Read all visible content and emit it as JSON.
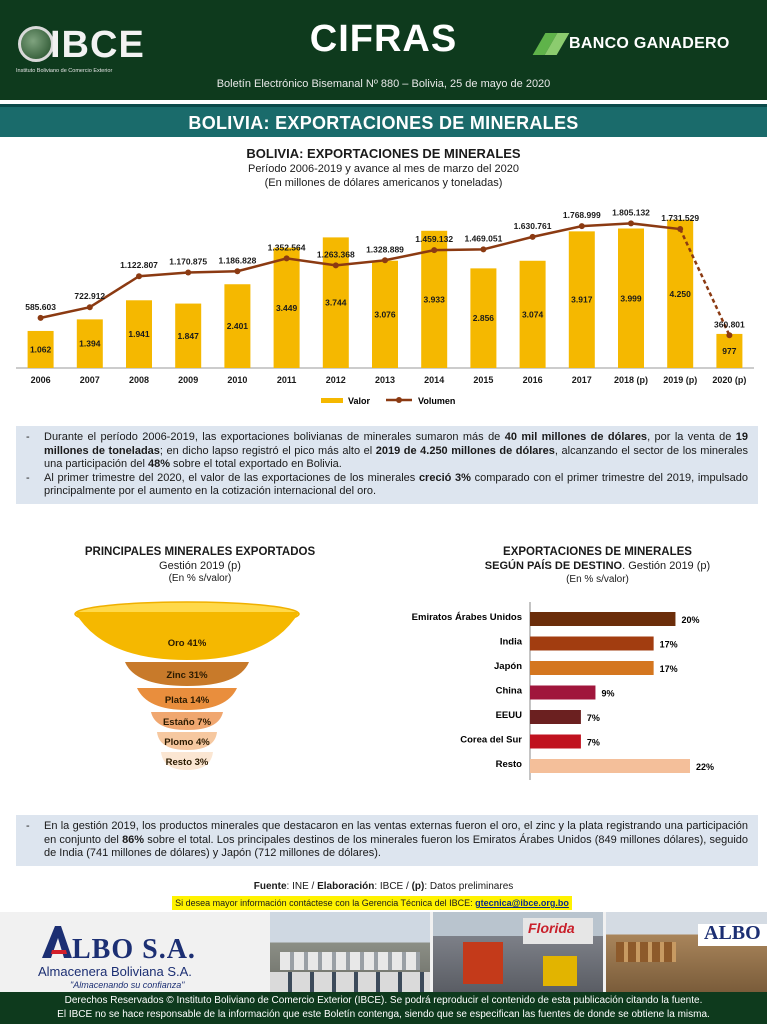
{
  "header": {
    "logo_text": "IBCE",
    "logo_subtext": "Instituto Boliviano de Comercio Exterior",
    "title": "CIFRAS",
    "bank_name": "BANCO GANADERO",
    "bulletin": "Boletín Electrónico Bisemanal Nº 880 – Bolivia, 25 de mayo de 2020"
  },
  "section": {
    "title": "BOLIVIA: EXPORTACIONES DE MINERALES"
  },
  "chart_data": [
    {
      "type": "bar",
      "title": "BOLIVIA: EXPORTACIONES DE MINERALES",
      "subtitle": "Período 2006-2019 y avance al mes de marzo del 2020",
      "subtitle2": "(En millones de dólares americanos y toneladas)",
      "categories": [
        "2006",
        "2007",
        "2008",
        "2009",
        "2010",
        "2011",
        "2012",
        "2013",
        "2014",
        "2015",
        "2016",
        "2017",
        "2018 (p)",
        "2019 (p)",
        "2020 (p)"
      ],
      "series": [
        {
          "name": "Valor",
          "type": "bar",
          "color": "#f5b800",
          "values": [
            1062,
            1394,
            1941,
            1847,
            2401,
            3449,
            3744,
            3076,
            3933,
            2856,
            3074,
            3917,
            3999,
            4250,
            977
          ],
          "labels": [
            "1.062",
            "1.394",
            "1.941",
            "1.847",
            "2.401",
            "3.449",
            "3.744",
            "3.076",
            "3.933",
            "2.856",
            "3.074",
            "3.917",
            "3.999",
            "4.250",
            "977"
          ]
        },
        {
          "name": "Volumen",
          "type": "line",
          "color": "#8b3a12",
          "values": [
            585603,
            722912,
            1122807,
            1170875,
            1186828,
            1352564,
            1263368,
            1328889,
            1459132,
            1469051,
            1630761,
            1768999,
            1805132,
            1731529,
            360801
          ],
          "labels": [
            "585.603",
            "722.912",
            "1.122.807",
            "1.170.875",
            "1.186.828",
            "1.352.564",
            "1.263.368",
            "1.328.889",
            "1.459.132",
            "1.469.051",
            "1.630.761",
            "1.768.999",
            "1.805.132",
            "1.731.529",
            "360.801"
          ]
        }
      ],
      "legend": "bottom"
    },
    {
      "type": "funnel",
      "title": "PRINCIPALES MINERALES EXPORTADOS",
      "subtitle": "Gestión 2019 (p)",
      "unit": "(En % s/valor)",
      "categories": [
        "Oro",
        "Zinc",
        "Plata",
        "Estaño",
        "Plomo",
        "Resto"
      ],
      "values": [
        41,
        31,
        14,
        7,
        4,
        3
      ],
      "labels": [
        "Oro 41%",
        "Zinc 31%",
        "Plata 14%",
        "Estaño 7%",
        "Plomo 4%",
        "Resto 3%"
      ],
      "colors": [
        "#f5b800",
        "#c87a2a",
        "#e98e3d",
        "#f0a770",
        "#f6c8a0",
        "#fbe6d2"
      ]
    },
    {
      "type": "bar",
      "orientation": "horizontal",
      "title": "EXPORTACIONES DE MINERALES",
      "title2": "SEGÚN PAÍS DE DESTINO",
      "title2_suffix": ". Gestión 2019 (p)",
      "unit": "(En % s/valor)",
      "categories": [
        "Emiratos Árabes Unidos",
        "India",
        "Japón",
        "China",
        "EEUU",
        "Corea del Sur",
        "Resto"
      ],
      "values": [
        20,
        17,
        17,
        9,
        7,
        7,
        22
      ],
      "labels": [
        "20%",
        "17%",
        "17%",
        "9%",
        "7%",
        "7%",
        "22%"
      ],
      "colors": [
        "#6b2d0a",
        "#a23d10",
        "#d4761f",
        "#a0163c",
        "#6b2020",
        "#c0121f",
        "#f4bf9a"
      ]
    }
  ],
  "notes_top": [
    {
      "dash": "-",
      "parts": [
        {
          "t": "Durante el período 2006-2019, las exportaciones bolivianas de minerales sumaron más de ",
          "b": false
        },
        {
          "t": "40 mil millones de dólares",
          "b": true
        },
        {
          "t": ", por la venta de ",
          "b": false
        },
        {
          "t": "19 millones de toneladas",
          "b": true
        },
        {
          "t": "; en dicho lapso registró el pico más alto el ",
          "b": false
        },
        {
          "t": "2019 de 4.250 millones de dólares",
          "b": true
        },
        {
          "t": ", alcanzando el sector de los minerales una participación del ",
          "b": false
        },
        {
          "t": "48%",
          "b": true
        },
        {
          "t": " sobre el total exportado en Bolivia.",
          "b": false
        }
      ]
    },
    {
      "dash": "-",
      "parts": [
        {
          "t": "Al primer trimestre del 2020, el valor de las exportaciones de los minerales ",
          "b": false
        },
        {
          "t": "creció 3%",
          "b": true
        },
        {
          "t": " comparado con el primer trimestre del 2019, impulsado principalmente por el aumento en la cotización internacional del oro.",
          "b": false
        }
      ]
    }
  ],
  "notes_bottom": [
    {
      "dash": "-",
      "parts": [
        {
          "t": "En la gestión 2019, los productos minerales que destacaron en las ventas externas fueron el oro, el zinc y la plata registrando una participación en conjunto del ",
          "b": false
        },
        {
          "t": "86%",
          "b": true
        },
        {
          "t": " sobre el total. Los principales destinos de los minerales fueron los Emiratos Árabes Unidos (849 millones dólares), seguido de India (741 millones de dólares) y Japón (712 millones de dólares).",
          "b": false
        }
      ]
    }
  ],
  "source": {
    "label1": "Fuente",
    "text1": ": INE / ",
    "label2": "Elaboración",
    "text2": ": IBCE / ",
    "label3": "(p)",
    "text3": ": Datos preliminares"
  },
  "contact": {
    "text": "Si desea mayor información contáctese con la Gerencia Técnica del IBCE: ",
    "email": "gtecnica@ibce.org.bo"
  },
  "ad": {
    "brand": "LBO S.A.",
    "subtitle": "Almacenera Boliviana S.A.",
    "slogan": "\"Almacenando su confianza\"",
    "sign_florida": "Florida",
    "sign_albo": "ALBO"
  },
  "footer": {
    "line1": "Derechos Reservados © Instituto Boliviano de Comercio Exterior (IBCE). Se podrá reproducir el contenido de esta publicación citando la fuente.",
    "line2": "El IBCE no se hace responsable de la información que este Boletín contenga, siendo que se especifican las fuentes de donde se obtiene la misma."
  }
}
